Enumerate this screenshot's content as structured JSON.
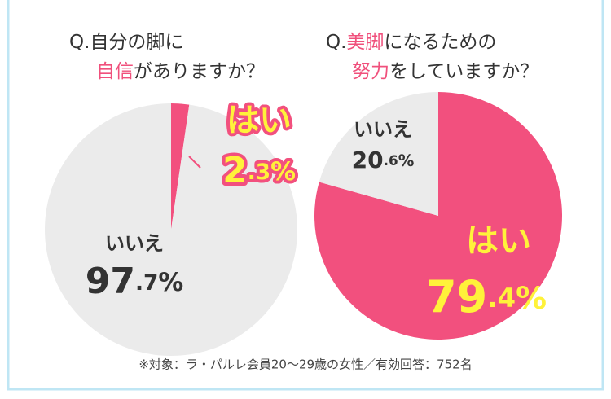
{
  "chart_data": [
    {
      "type": "pie",
      "title_parts": [
        [
          {
            "text": "Q.自分の脚に"
          }
        ],
        [
          {
            "text": "自信",
            "color": "#f0507c"
          },
          {
            "text": "がありますか？"
          }
        ]
      ],
      "categories": [
        "はい",
        "いいえ"
      ],
      "values": [
        2.3,
        97.7
      ],
      "value_labels": [
        "2.3%",
        "97.7%"
      ],
      "colors": [
        "#f2507e",
        "#ebebeb"
      ]
    },
    {
      "type": "pie",
      "title_parts": [
        [
          {
            "text": "Q."
          },
          {
            "text": "美脚",
            "color": "#f0507c"
          },
          {
            "text": "になるための"
          }
        ],
        [
          {
            "text": "努力",
            "color": "#f0507c"
          },
          {
            "text": "をしていますか？"
          }
        ]
      ],
      "categories": [
        "はい",
        "いいえ"
      ],
      "values": [
        79.4,
        20.6
      ],
      "value_labels": [
        "79.4%",
        "20.6%"
      ],
      "colors": [
        "#f2507e",
        "#ebebeb"
      ]
    }
  ],
  "footnote": "※対象：ラ・パルレ会員20～29歳の女性／有効回答：752名"
}
